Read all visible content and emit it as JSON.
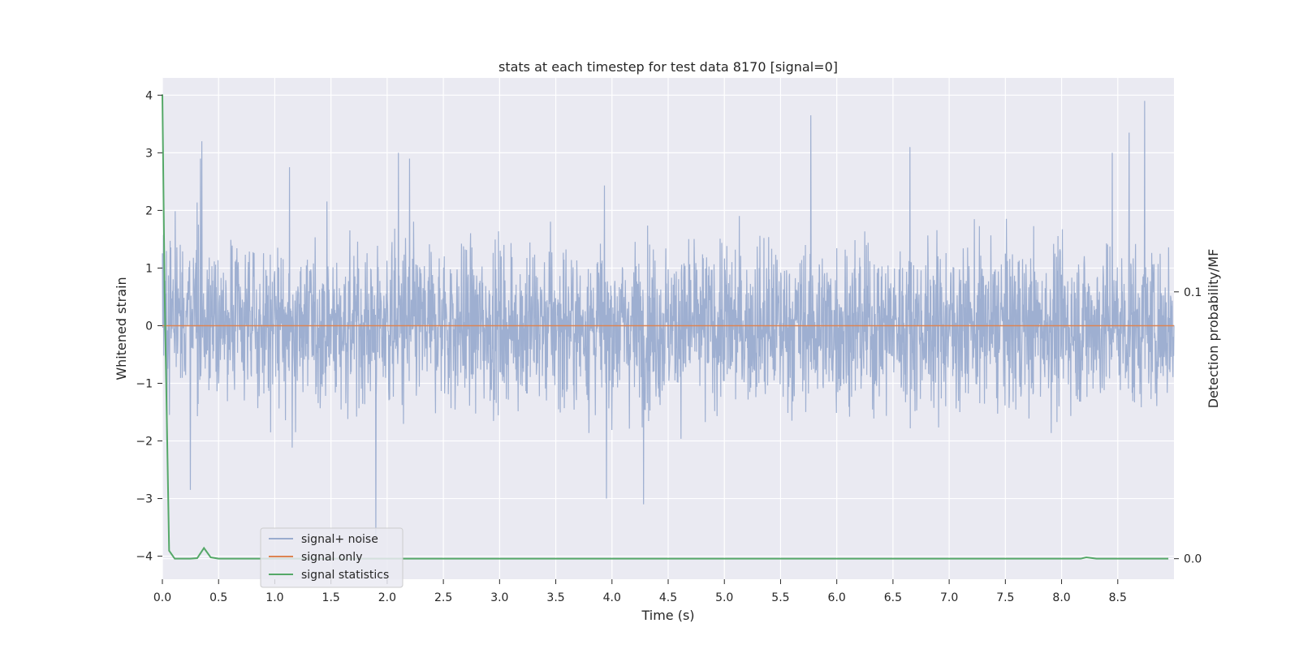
{
  "chart_data": {
    "type": "line",
    "title": "stats at each timestep for test data 8170 [signal=0]",
    "xlabel": "Time (s)",
    "ylabel": "Whitened strain",
    "y2label": "Detection probability/MF",
    "xlim": [
      0.0,
      9.0
    ],
    "ylim": [
      -4.4,
      4.3
    ],
    "y2lim": [
      -0.0077,
      0.1802
    ],
    "x_ticks": [
      0.0,
      0.5,
      1.0,
      1.5,
      2.0,
      2.5,
      3.0,
      3.5,
      4.0,
      4.5,
      5.0,
      5.5,
      6.0,
      6.5,
      7.0,
      7.5,
      8.0,
      8.5
    ],
    "x_tick_labels": [
      "0.0",
      "0.5",
      "1.0",
      "1.5",
      "2.0",
      "2.5",
      "3.0",
      "3.5",
      "4.0",
      "4.5",
      "5.0",
      "5.5",
      "6.0",
      "6.5",
      "7.0",
      "7.5",
      "8.0",
      "8.5"
    ],
    "y_ticks": [
      4,
      3,
      2,
      1,
      0,
      -1,
      -2,
      -3,
      -4
    ],
    "y_tick_labels": [
      "4",
      "3",
      "2",
      "1",
      "0",
      "−1",
      "−2",
      "−3",
      "−4"
    ],
    "y2_ticks": [
      0.1,
      0.0
    ],
    "y2_tick_labels": [
      "0.1",
      "0.0"
    ],
    "grid": true,
    "legend_position": "lower-left",
    "series": [
      {
        "name": "signal+ noise",
        "axis": "left",
        "color": "#9aaccf",
        "description": "dense noise trace, roughly within -2.5..2.5 with spikes",
        "peaks": [
          {
            "x": 0.35,
            "y": 3.2
          },
          {
            "x": 0.34,
            "y": 2.9
          },
          {
            "x": 1.13,
            "y": 2.75
          },
          {
            "x": 2.1,
            "y": 3.0
          },
          {
            "x": 2.2,
            "y": 2.9
          },
          {
            "x": 5.77,
            "y": 3.65
          },
          {
            "x": 6.65,
            "y": 3.1
          },
          {
            "x": 8.45,
            "y": 3.0
          },
          {
            "x": 8.6,
            "y": 3.35
          },
          {
            "x": 8.74,
            "y": 3.9
          },
          {
            "x": 1.9,
            "y": -3.7
          },
          {
            "x": 4.28,
            "y": -3.1
          },
          {
            "x": 3.95,
            "y": -3.0
          },
          {
            "x": 0.25,
            "y": -2.85
          },
          {
            "x": 0.04,
            "y": -2.0
          }
        ]
      },
      {
        "name": "signal only",
        "axis": "left",
        "color": "#dd8452",
        "x": [
          0.0,
          9.0
        ],
        "y": [
          0.0,
          0.0
        ]
      },
      {
        "name": "signal statistics",
        "axis": "right",
        "color": "#55a868",
        "x": [
          0.0,
          0.02,
          0.06,
          0.11,
          0.25,
          0.31,
          0.37,
          0.43,
          0.5,
          1.0,
          8.0,
          8.17,
          8.22,
          8.31,
          8.95
        ],
        "y": [
          0.174,
          0.1,
          0.003,
          0.0,
          0.0,
          0.0002,
          0.004,
          0.0005,
          0.0,
          0.0,
          0.0,
          0.0,
          0.0005,
          0.0,
          0.0
        ]
      }
    ]
  }
}
